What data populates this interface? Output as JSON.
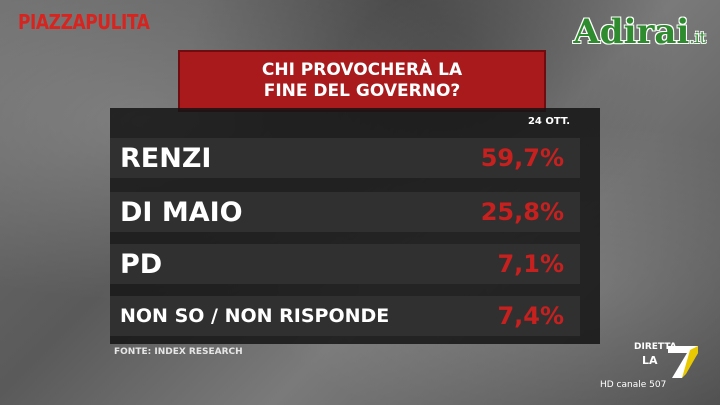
{
  "header": {
    "brand": "PIAZZAPULITA",
    "watermark_main": "Adirai",
    "watermark_tld": ".it"
  },
  "poll": {
    "title_line1": "CHI PROVOCHERÀ LA",
    "title_line2": "FINE DEL GOVERNO?",
    "date": "24 OTT.",
    "rows": [
      {
        "label": "RENZI",
        "value": "59,7%"
      },
      {
        "label": "DI MAIO",
        "value": "25,8%"
      },
      {
        "label": "PD",
        "value": "7,1%"
      },
      {
        "label": "NON SO / NON RISPONDE",
        "value": "7,4%"
      }
    ],
    "source": "FONTE: INDEX RESEARCH"
  },
  "channel": {
    "live": "DIRETTA",
    "la": "LA",
    "hd": "HD canale 507"
  },
  "colors": {
    "accent_red": "#a91a1d",
    "value_red": "#c6201f",
    "brand_red": "#d8241f",
    "watermark_green": "#2e8b2e"
  }
}
